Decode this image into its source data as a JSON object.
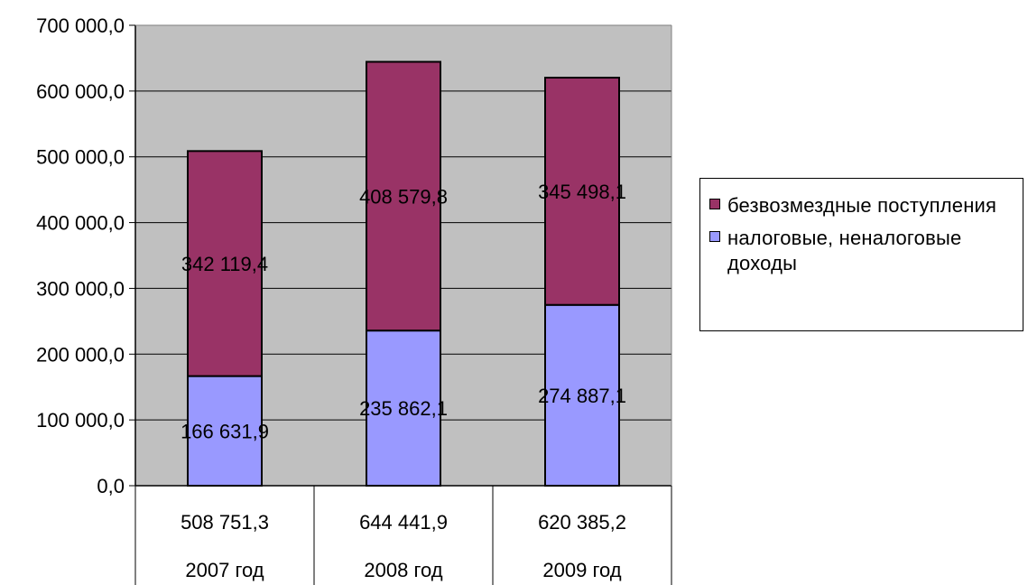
{
  "chart_data": {
    "type": "bar",
    "stacked": true,
    "categories": [
      "2007 год",
      "2008 год",
      "2009 год"
    ],
    "totals": [
      "508 751,3",
      "644 441,9",
      "620 385,2"
    ],
    "series": [
      {
        "name": "налоговые, неналоговые доходы",
        "values": [
          166631.9,
          235862.1,
          274887.1
        ],
        "labels": [
          "166 631,9",
          "235 862,1",
          "274 887,1"
        ],
        "color": "#9999FF"
      },
      {
        "name": "безвозмездные поступления",
        "values": [
          342119.4,
          408579.8,
          345498.1
        ],
        "labels": [
          "342 119,4",
          "408 579,8",
          "345 498,1"
        ],
        "color": "#993366"
      }
    ],
    "yticks": [
      "0,0",
      "100 000,0",
      "200 000,0",
      "300 000,0",
      "400 000,0",
      "500 000,0",
      "600 000,0",
      "700 000,0"
    ],
    "ylim": [
      0,
      700000
    ],
    "grid": true,
    "plot_background": "#C0C0C0",
    "legend": {
      "position": "right",
      "items": [
        {
          "label": "безвозмездные поступления",
          "color": "#993366"
        },
        {
          "label": "налоговые, неналоговые доходы",
          "color": "#9999FF"
        }
      ]
    }
  }
}
